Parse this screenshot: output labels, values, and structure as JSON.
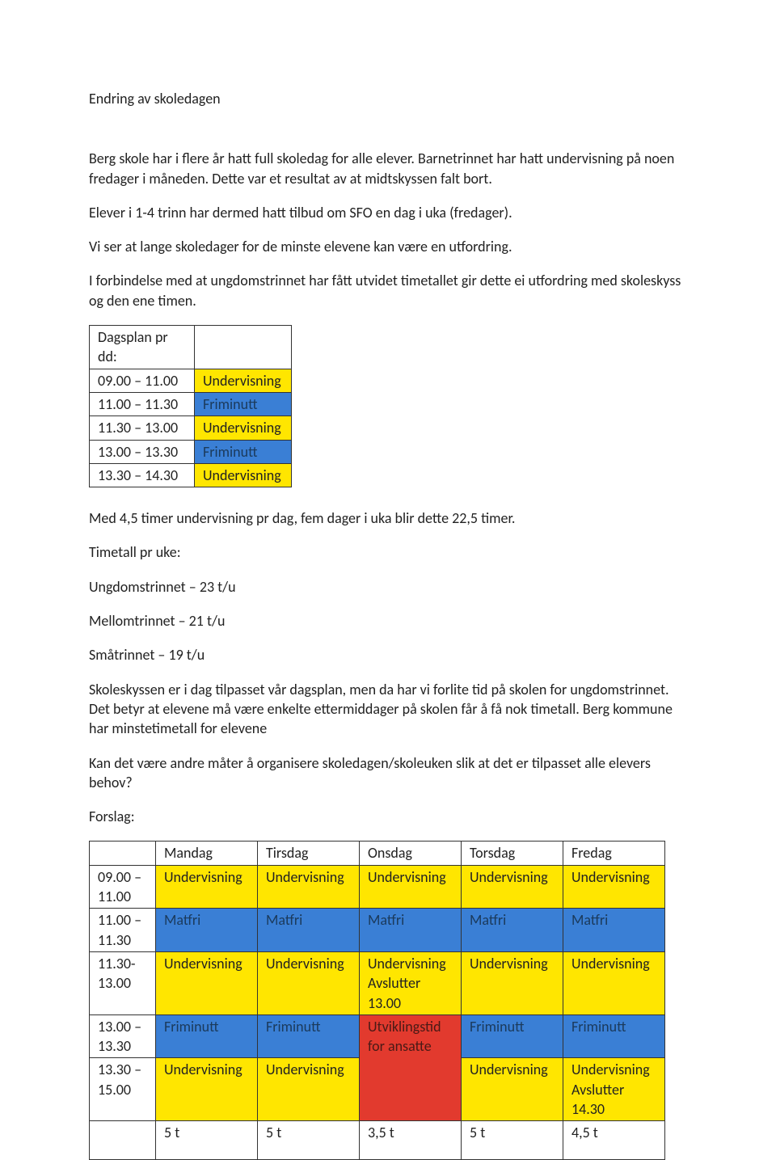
{
  "title": "Endring av skoledagen",
  "paragraphs": [
    "Berg skole har i flere år hatt full skoledag for alle elever. Barnetrinnet har hatt undervisning på noen fredager i måneden. Dette var et resultat av at midtskyssen falt bort.",
    "Elever i 1-4 trinn har dermed hatt tilbud om SFO en dag i uka (fredager).",
    "Vi ser at lange skoledager for de minste elevene kan være en utfordring.",
    "I forbindelse med at ungdomstrinnet har fått utvidet timetallet gir dette ei utfordring med skoleskyss og den ene timen."
  ],
  "colors": {
    "yellow": "#ffe600",
    "blue": "#3a7fd5",
    "red": "#e23a2e",
    "blue_text": "#1b3a5b",
    "red_text": "#4a1a16",
    "text": "#222222",
    "border": "#333333",
    "bg": "#ffffff"
  },
  "table1": {
    "header": "Dagsplan pr dd:",
    "rows": [
      {
        "time": "09.00 – 11.00",
        "label": "Undervisning",
        "c": "yellow"
      },
      {
        "time": "11.00 – 11.30",
        "label": "Friminutt",
        "c": "blue"
      },
      {
        "time": "11.30 – 13.00",
        "label": "Undervisning",
        "c": "yellow"
      },
      {
        "time": "13.00 – 13.30",
        "label": "Friminutt",
        "c": "blue"
      },
      {
        "time": "13.30 – 14.30",
        "label": "Undervisning",
        "c": "yellow"
      }
    ]
  },
  "mid_paragraphs": [
    "Med 4,5 timer undervisning pr dag, fem dager i uka blir dette 22,5 timer.",
    "Timetall pr uke:",
    "Ungdomstrinnet – 23 t/u",
    "Mellomtrinnet – 21 t/u",
    "Småtrinnet – 19 t/u",
    "Skoleskyssen er i dag tilpasset vår dagsplan, men da har vi forlite tid på skolen for ungdomstrinnet. Det betyr at elevene må være enkelte ettermiddager på skolen får å få nok timetall. Berg kommune har minstetimetall for elevene",
    "Kan det være andre måter å organisere skoledagen/skoleuken slik at det er tilpasset alle elevers behov?",
    "Forslag:"
  ],
  "table2": {
    "columns": [
      "",
      "Mandag",
      "Tirsdag",
      "Onsdag",
      "Torsdag",
      "Fredag"
    ],
    "rows": [
      {
        "time": "09.00 – 11.00",
        "cells": [
          {
            "t": "Undervisning",
            "c": "yellow"
          },
          {
            "t": "Undervisning",
            "c": "yellow"
          },
          {
            "t": "Undervisning",
            "c": "yellow"
          },
          {
            "t": "Undervisning",
            "c": "yellow"
          },
          {
            "t": "Undervisning",
            "c": "yellow"
          }
        ]
      },
      {
        "time": "11.00 – 11.30",
        "cells": [
          {
            "t": "Matfri",
            "c": "blue"
          },
          {
            "t": "Matfri",
            "c": "blue"
          },
          {
            "t": "Matfri",
            "c": "blue"
          },
          {
            "t": "Matfri",
            "c": "blue"
          },
          {
            "t": "Matfri",
            "c": "blue"
          }
        ]
      },
      {
        "time": "11.30- 13.00",
        "cells": [
          {
            "t": "Undervisning",
            "c": "yellow"
          },
          {
            "t": "Undervisning",
            "c": "yellow"
          },
          {
            "t": "Undervisning Avslutter 13.00",
            "c": "yellow"
          },
          {
            "t": "Undervisning",
            "c": "yellow"
          },
          {
            "t": "Undervisning",
            "c": "yellow"
          }
        ]
      },
      {
        "time": "13.00 – 13.30",
        "cells": [
          {
            "t": "Friminutt",
            "c": "blue"
          },
          {
            "t": "Friminutt",
            "c": "blue"
          },
          {
            "t": "Utviklingstid for ansatte",
            "c": "red",
            "rowspan": 2
          },
          {
            "t": "Friminutt",
            "c": "blue"
          },
          {
            "t": "Friminutt",
            "c": "blue"
          }
        ]
      },
      {
        "time": "13.30 – 15.00",
        "cells": [
          {
            "t": "Undervisning",
            "c": "yellow"
          },
          {
            "t": "Undervisning",
            "c": "yellow"
          },
          {
            "t": "Undervisning",
            "c": "yellow"
          },
          {
            "t": "Undervisning Avslutter 14.30",
            "c": "yellow"
          }
        ]
      },
      {
        "time": "",
        "cells": [
          {
            "t": "5 t",
            "c": ""
          },
          {
            "t": "5 t",
            "c": ""
          },
          {
            "t": "3,5 t",
            "c": ""
          },
          {
            "t": "5 t",
            "c": ""
          },
          {
            "t": "4,5 t",
            "c": ""
          }
        ]
      }
    ]
  }
}
